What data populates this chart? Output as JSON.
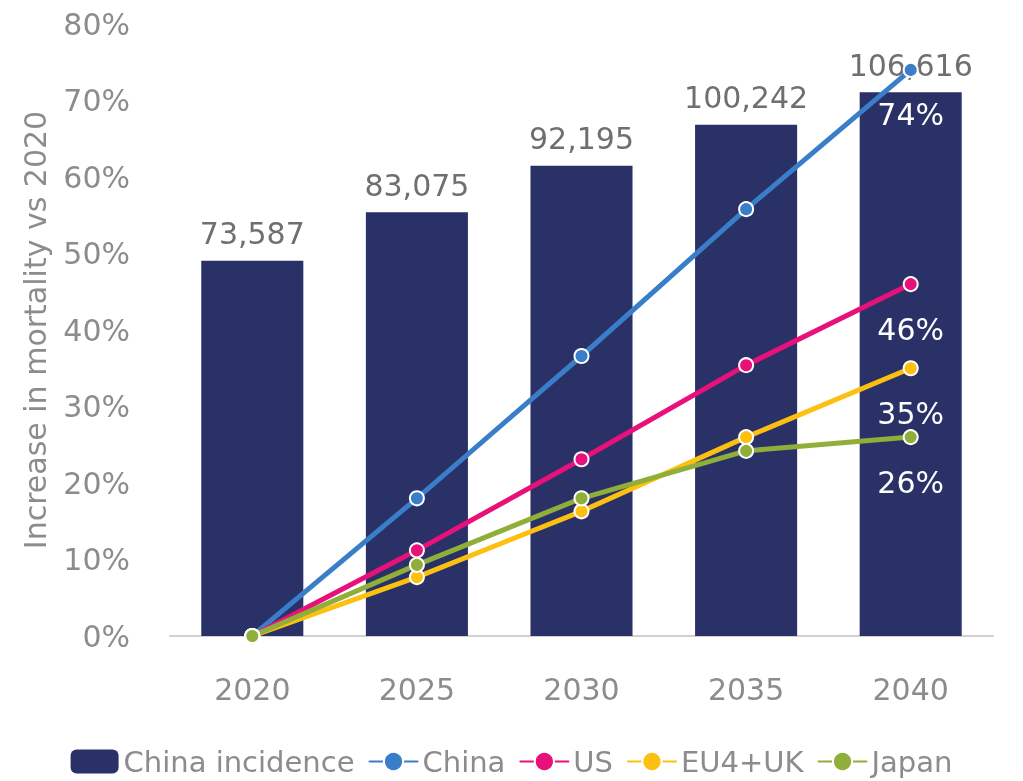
{
  "chart_data": {
    "type": "bar",
    "ylabel": "Increase in mortality vs 2020",
    "categories": [
      "2020",
      "2025",
      "2030",
      "2035",
      "2040"
    ],
    "series": [
      {
        "name": "China incidence",
        "axis": "y2",
        "color": "#293166",
        "values": [
          73587,
          83075,
          92195,
          100242,
          106616
        ],
        "value_labels": [
          "73,587",
          "83,075",
          "92,195",
          "100,242",
          "106,616"
        ]
      },
      {
        "name": "China",
        "type": "line",
        "color": "#3a7dc9",
        "values": [
          0,
          18,
          36.6,
          55.8,
          74
        ],
        "value_labels": [
          null,
          null,
          null,
          null,
          "74%"
        ]
      },
      {
        "name": "US",
        "type": "line",
        "color": "#e8107a",
        "values": [
          0,
          11.2,
          23.1,
          35.4,
          46
        ],
        "value_labels": [
          null,
          null,
          null,
          null,
          "46%"
        ]
      },
      {
        "name": "EU4+UK",
        "type": "line",
        "color": "#fcc010",
        "values": [
          0,
          7.7,
          16.3,
          26,
          35
        ],
        "value_labels": [
          null,
          null,
          null,
          null,
          "35%"
        ]
      },
      {
        "name": "Japan",
        "type": "line",
        "color": "#8fae3a",
        "values": [
          0,
          9.3,
          18,
          24.2,
          26
        ],
        "value_labels": [
          null,
          null,
          null,
          null,
          "26%"
        ]
      }
    ],
    "ylim": [
      0,
      80
    ],
    "yticks": [
      {
        "value": 0,
        "label": "0%"
      },
      {
        "value": 10,
        "label": "10%"
      },
      {
        "value": 20,
        "label": "20%"
      },
      {
        "value": 30,
        "label": "30%"
      },
      {
        "value": 40,
        "label": "40%"
      },
      {
        "value": 50,
        "label": "50%"
      },
      {
        "value": 60,
        "label": "60%"
      },
      {
        "value": 70,
        "label": "70%"
      },
      {
        "value": 80,
        "label": "80%"
      }
    ],
    "tick_labels": "xy",
    "marker": "circle",
    "line_style": "solid",
    "grid": false,
    "legend": "bottom"
  }
}
